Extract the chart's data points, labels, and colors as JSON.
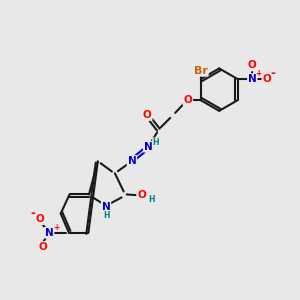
{
  "bg_color": "#e8e8e8",
  "bond_color": "#1a1a1a",
  "bond_width": 1.5,
  "colors": {
    "C": "#1a1a1a",
    "N": "#0000cc",
    "O": "#ff0000",
    "Br": "#cc6600",
    "H": "#008080",
    "plus": "#ff0000",
    "minus": "#ff0000"
  },
  "font_size": 7.5
}
